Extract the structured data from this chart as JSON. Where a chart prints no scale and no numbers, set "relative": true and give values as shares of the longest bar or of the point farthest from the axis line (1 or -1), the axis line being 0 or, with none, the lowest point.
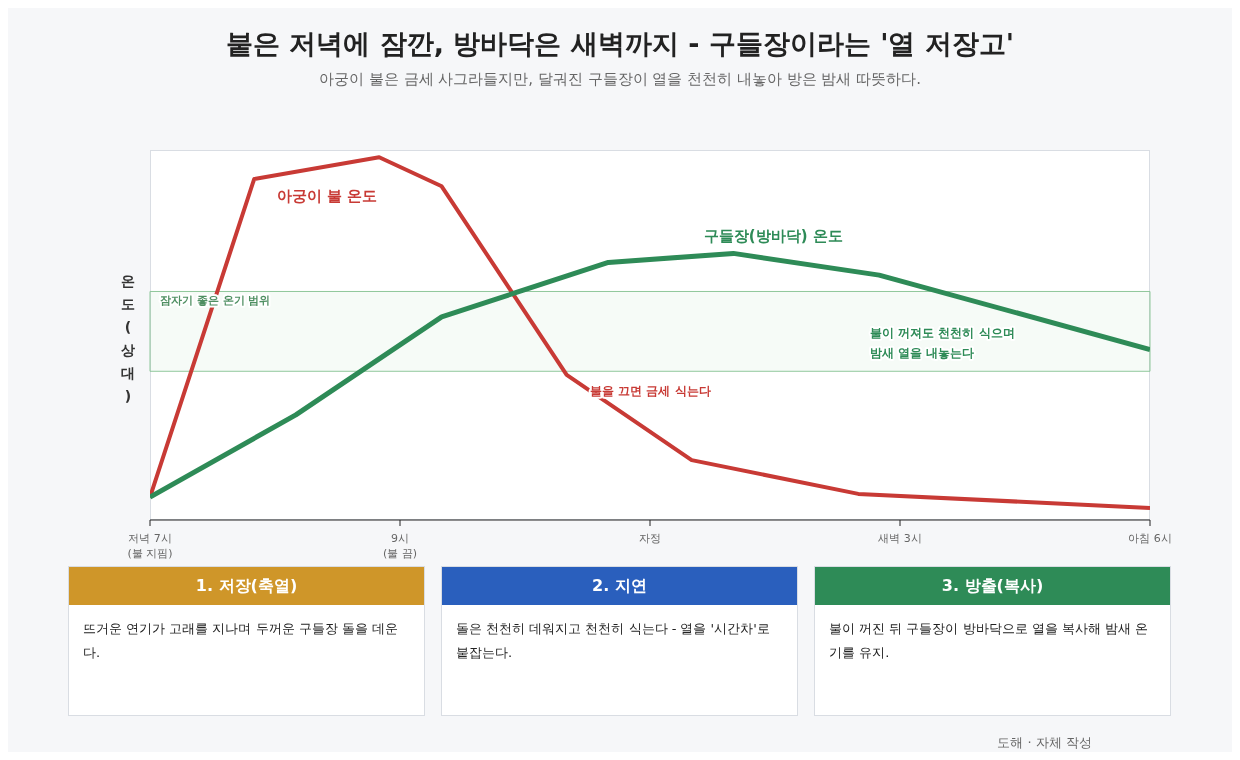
{
  "chart_data": {
    "type": "line",
    "title": "붙은 저녁에 잠깐, 방바닥은 새벽까지 - 구들장이라는 '열 저장고'",
    "subtitle": "아궁이 불은 금세 사그라들지만, 달궈진 구들장이 열을 천천히 내놓아 방은 밤새 따뜻하다.",
    "ylabel": "온도 (상대)",
    "relative": true,
    "categories": [
      "저녁 7시\n(불 지핌)",
      null,
      null,
      null,
      null,
      null,
      null,
      null,
      null,
      null,
      null,
      null,
      "9시\n(불 끔)",
      null,
      null,
      null,
      null,
      null,
      null,
      null,
      null,
      null,
      null,
      null,
      "자정",
      null,
      null,
      null,
      null,
      null,
      null,
      null,
      null,
      null,
      null,
      null,
      "새벽 3시",
      null,
      null,
      null,
      null,
      null,
      null,
      null,
      null,
      null,
      null,
      null,
      "아침 6시"
    ],
    "series": [
      {
        "name": "아궁이 불 온도",
        "color": "#c83a35",
        "values": [
          0.063,
          null,
          null,
          null,
          null,
          0.94,
          null,
          null,
          null,
          null,
          null,
          1,
          null,
          null,
          0.92,
          null,
          null,
          null,
          null,
          null,
          0.4,
          null,
          null,
          null,
          null,
          null,
          0.165,
          null,
          null,
          null,
          null,
          null,
          null,
          null,
          0.072,
          null,
          null,
          null,
          null,
          null,
          null,
          null,
          null,
          null,
          null,
          null,
          null,
          null,
          0.033
        ]
      },
      {
        "name": "구들장(방바닥) 온도",
        "color": "#2e8b57",
        "values": [
          0.063,
          null,
          null,
          null,
          null,
          null,
          null,
          0.29,
          null,
          null,
          null,
          null,
          null,
          null,
          0.56,
          null,
          null,
          null,
          null,
          null,
          null,
          null,
          0.71,
          null,
          null,
          null,
          null,
          null,
          0.735,
          null,
          null,
          null,
          null,
          null,
          null,
          0.675,
          null,
          null,
          null,
          null,
          null,
          null,
          null,
          null,
          null,
          null,
          null,
          null,
          0.47
        ]
      }
    ],
    "bands": [
      {
        "axis": "y",
        "from": 0.41,
        "to": 0.63,
        "label": "잠자기 좋은 온기 범위",
        "color": "#8fc79b"
      }
    ],
    "annotations": [
      {
        "text": "불을 끄면 금세 식는다",
        "x": "자정",
        "y": 0.4
      },
      "불이 꺼져도 천천히 식으며\n밤새 열을 내놓는다",
      "1. 저장(축열)",
      "뜨거운 연기가 고래를 지나며 두꺼운 구들장 돌을 데운다.",
      "2. 지연",
      "돌은 천천히 데워지고 천천히 식는다 - 열을 '시간차'로 붙잡는다.",
      "3. 방출(복사)",
      "불이 꺼진 뒤 구들장이 방바닥으로 열을 복사해 밤새 온기를 유지.",
      "도해 · 자체 작성"
    ],
    "grid": false,
    "legend": false,
    "marker": "none",
    "line_style": "solid"
  }
}
